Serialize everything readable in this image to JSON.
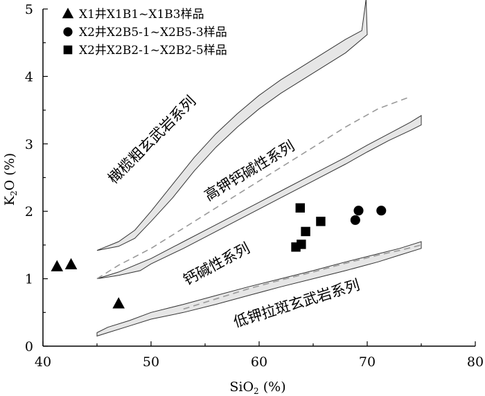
{
  "chart_data": {
    "type": "scatter",
    "xlabel_main": "SiO",
    "xlabel_sub": "2",
    "xlabel_unit": " (%)",
    "ylabel_main": "K",
    "ylabel_sub": "2",
    "ylabel_unit": "O (%)",
    "xlim": [
      40,
      80
    ],
    "ylim": [
      0,
      5
    ],
    "xticks": [
      "40",
      "50",
      "60",
      "70",
      "80"
    ],
    "yticks": [
      "0",
      "1",
      "2",
      "3",
      "4",
      "5"
    ],
    "legend_position": "top-left",
    "series": [
      {
        "name": "X1井X1B1~X1B3样品",
        "marker": "triangle",
        "points": [
          [
            41.3,
            1.18
          ],
          [
            42.6,
            1.21
          ],
          [
            47.0,
            0.63
          ]
        ]
      },
      {
        "name": "X2井X2B5-1~X2B5-3样品",
        "marker": "circle",
        "points": [
          [
            69.2,
            2.01
          ],
          [
            71.3,
            2.01
          ],
          [
            68.9,
            1.87
          ]
        ]
      },
      {
        "name": "X2井X2B2-1~X2B2-5样品",
        "marker": "square",
        "points": [
          [
            63.8,
            2.05
          ],
          [
            65.7,
            1.85
          ],
          [
            64.3,
            1.7
          ],
          [
            63.4,
            1.47
          ],
          [
            63.9,
            1.51
          ]
        ]
      }
    ],
    "bands": [
      {
        "id": "top",
        "upper": [
          [
            45,
            1.42
          ],
          [
            47,
            1.55
          ],
          [
            48.5,
            1.72
          ],
          [
            50,
            2.0
          ],
          [
            52,
            2.4
          ],
          [
            54,
            2.8
          ],
          [
            56,
            3.15
          ],
          [
            58,
            3.45
          ],
          [
            60,
            3.72
          ],
          [
            62,
            3.95
          ],
          [
            64,
            4.15
          ],
          [
            66,
            4.35
          ],
          [
            68,
            4.55
          ],
          [
            69.5,
            4.68
          ],
          [
            69.9,
            5.15
          ]
        ],
        "lower": [
          [
            45,
            1.42
          ],
          [
            47,
            1.48
          ],
          [
            48.5,
            1.6
          ],
          [
            50,
            1.85
          ],
          [
            52,
            2.2
          ],
          [
            54,
            2.6
          ],
          [
            56,
            2.95
          ],
          [
            58,
            3.25
          ],
          [
            60,
            3.52
          ],
          [
            62,
            3.75
          ],
          [
            64,
            3.95
          ],
          [
            66,
            4.15
          ],
          [
            68,
            4.35
          ],
          [
            70,
            4.62
          ]
        ]
      },
      {
        "id": "middle",
        "upper": [
          [
            45,
            1.0
          ],
          [
            47,
            1.1
          ],
          [
            50,
            1.3
          ],
          [
            53,
            1.55
          ],
          [
            56,
            1.8
          ],
          [
            59,
            2.05
          ],
          [
            62,
            2.3
          ],
          [
            65,
            2.55
          ],
          [
            68,
            2.8
          ],
          [
            70,
            2.98
          ],
          [
            72,
            3.15
          ],
          [
            74,
            3.32
          ],
          [
            75,
            3.42
          ]
        ],
        "lower": [
          [
            45,
            1.0
          ],
          [
            47,
            1.05
          ],
          [
            49,
            1.12
          ],
          [
            50,
            1.22
          ],
          [
            53,
            1.45
          ],
          [
            56,
            1.7
          ],
          [
            59,
            1.95
          ],
          [
            62,
            2.2
          ],
          [
            65,
            2.45
          ],
          [
            68,
            2.7
          ],
          [
            70,
            2.88
          ],
          [
            72,
            3.05
          ],
          [
            74,
            3.2
          ],
          [
            75,
            3.28
          ]
        ]
      },
      {
        "id": "bottom",
        "upper": [
          [
            45,
            0.2
          ],
          [
            46,
            0.28
          ],
          [
            48,
            0.38
          ],
          [
            50,
            0.5
          ],
          [
            53,
            0.62
          ],
          [
            56,
            0.75
          ],
          [
            59,
            0.88
          ],
          [
            62,
            1.0
          ],
          [
            65,
            1.12
          ],
          [
            68,
            1.25
          ],
          [
            71,
            1.37
          ],
          [
            73,
            1.45
          ],
          [
            75,
            1.55
          ]
        ],
        "lower": [
          [
            45,
            0.15
          ],
          [
            46,
            0.2
          ],
          [
            48,
            0.3
          ],
          [
            50,
            0.4
          ],
          [
            53,
            0.5
          ],
          [
            56,
            0.62
          ],
          [
            59,
            0.75
          ],
          [
            62,
            0.88
          ],
          [
            65,
            1.0
          ],
          [
            68,
            1.12
          ],
          [
            71,
            1.25
          ],
          [
            73,
            1.35
          ],
          [
            75,
            1.45
          ]
        ]
      }
    ],
    "dashed_lines": [
      [
        [
          45,
          1.0
        ],
        [
          47,
          1.2
        ],
        [
          50,
          1.45
        ],
        [
          53,
          1.75
        ],
        [
          56,
          2.05
        ],
        [
          59,
          2.35
        ],
        [
          62,
          2.65
        ],
        [
          65,
          2.95
        ],
        [
          68,
          3.25
        ],
        [
          71,
          3.52
        ],
        [
          74,
          3.7
        ]
      ],
      [
        [
          53,
          0.55
        ],
        [
          56,
          0.7
        ],
        [
          59,
          0.85
        ],
        [
          62,
          0.98
        ],
        [
          65,
          1.1
        ],
        [
          68,
          1.23
        ],
        [
          71,
          1.35
        ],
        [
          73,
          1.42
        ],
        [
          75,
          1.5
        ]
      ]
    ],
    "annotations": [
      {
        "id": "shoshonite",
        "text": "橄榄粗玄武岩系列",
        "x": 46.6,
        "y": 2.4,
        "rotate": -45
      },
      {
        "id": "high-k",
        "text": "高钾钙碱性系列",
        "x": 55.3,
        "y": 2.15,
        "rotate": -31
      },
      {
        "id": "calc-alkaline",
        "text": "钙碱性系列",
        "x": 53.3,
        "y": 0.9,
        "rotate": -28
      },
      {
        "id": "low-k",
        "text": "低钾拉斑玄武岩系列",
        "x": 57.8,
        "y": 0.28,
        "rotate": -17
      }
    ]
  }
}
